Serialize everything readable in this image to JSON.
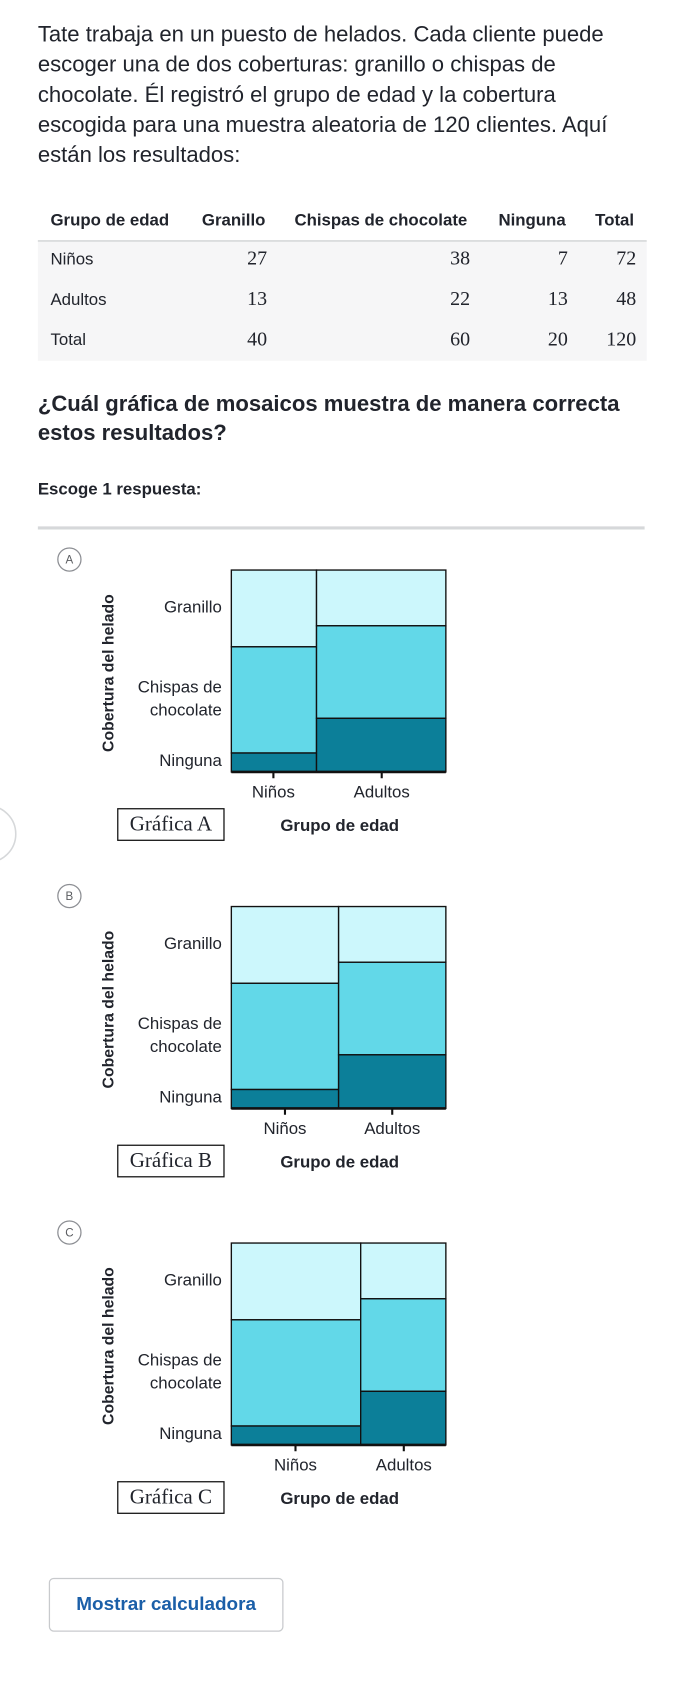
{
  "intro": [
    "Tate trabaja en un puesto de helados. Cada cliente puede",
    "escoger una de dos coberturas: granillo o chispas de",
    "chocolate. Él registró el grupo de edad y la cobertura",
    "escogida para una muestra aleatoria de 120 clientes. Aquí",
    "están los resultados:"
  ],
  "table": {
    "header": [
      "Grupo de edad",
      "Granillo",
      "Chispas de chocolate",
      "Ninguna",
      "Total"
    ],
    "rows": [
      [
        "Niños",
        "27",
        "38",
        "7",
        "72"
      ],
      [
        "Adultos",
        "13",
        "22",
        "13",
        "48"
      ],
      [
        "Total",
        "40",
        "60",
        "20",
        "120"
      ]
    ]
  },
  "question": [
    "¿Cuál gráfica de mosaicos muestra de manera correcta",
    "estos resultados?"
  ],
  "instruction": "Escoge 1 respuesta:",
  "options": [
    {
      "letter": "A",
      "y_axis_title": "Cobertura del helado",
      "y_labels": [
        "Granillo",
        "Chispas de",
        "chocolate",
        "Ninguna"
      ],
      "x_labels": [
        "Niños",
        "Adultos"
      ],
      "caption": "Gráfica A",
      "x_axis_title": "Grupo de edad"
    },
    {
      "letter": "B",
      "y_axis_title": "Cobertura del helado",
      "y_labels": [
        "Granillo",
        "Chispas de",
        "chocolate",
        "Ninguna"
      ],
      "x_labels": [
        "Niños",
        "Adultos"
      ],
      "caption": "Gráfica B",
      "x_axis_title": "Grupo de edad"
    },
    {
      "letter": "C",
      "y_axis_title": "Cobertura del helado",
      "y_labels": [
        "Granillo",
        "Chispas de",
        "chocolate",
        "Ninguna"
      ],
      "x_labels": [
        "Niños",
        "Adultos"
      ],
      "caption": "Gráfica C",
      "x_axis_title": "Grupo de edad"
    }
  ],
  "button": "Mostrar calculadora"
}
